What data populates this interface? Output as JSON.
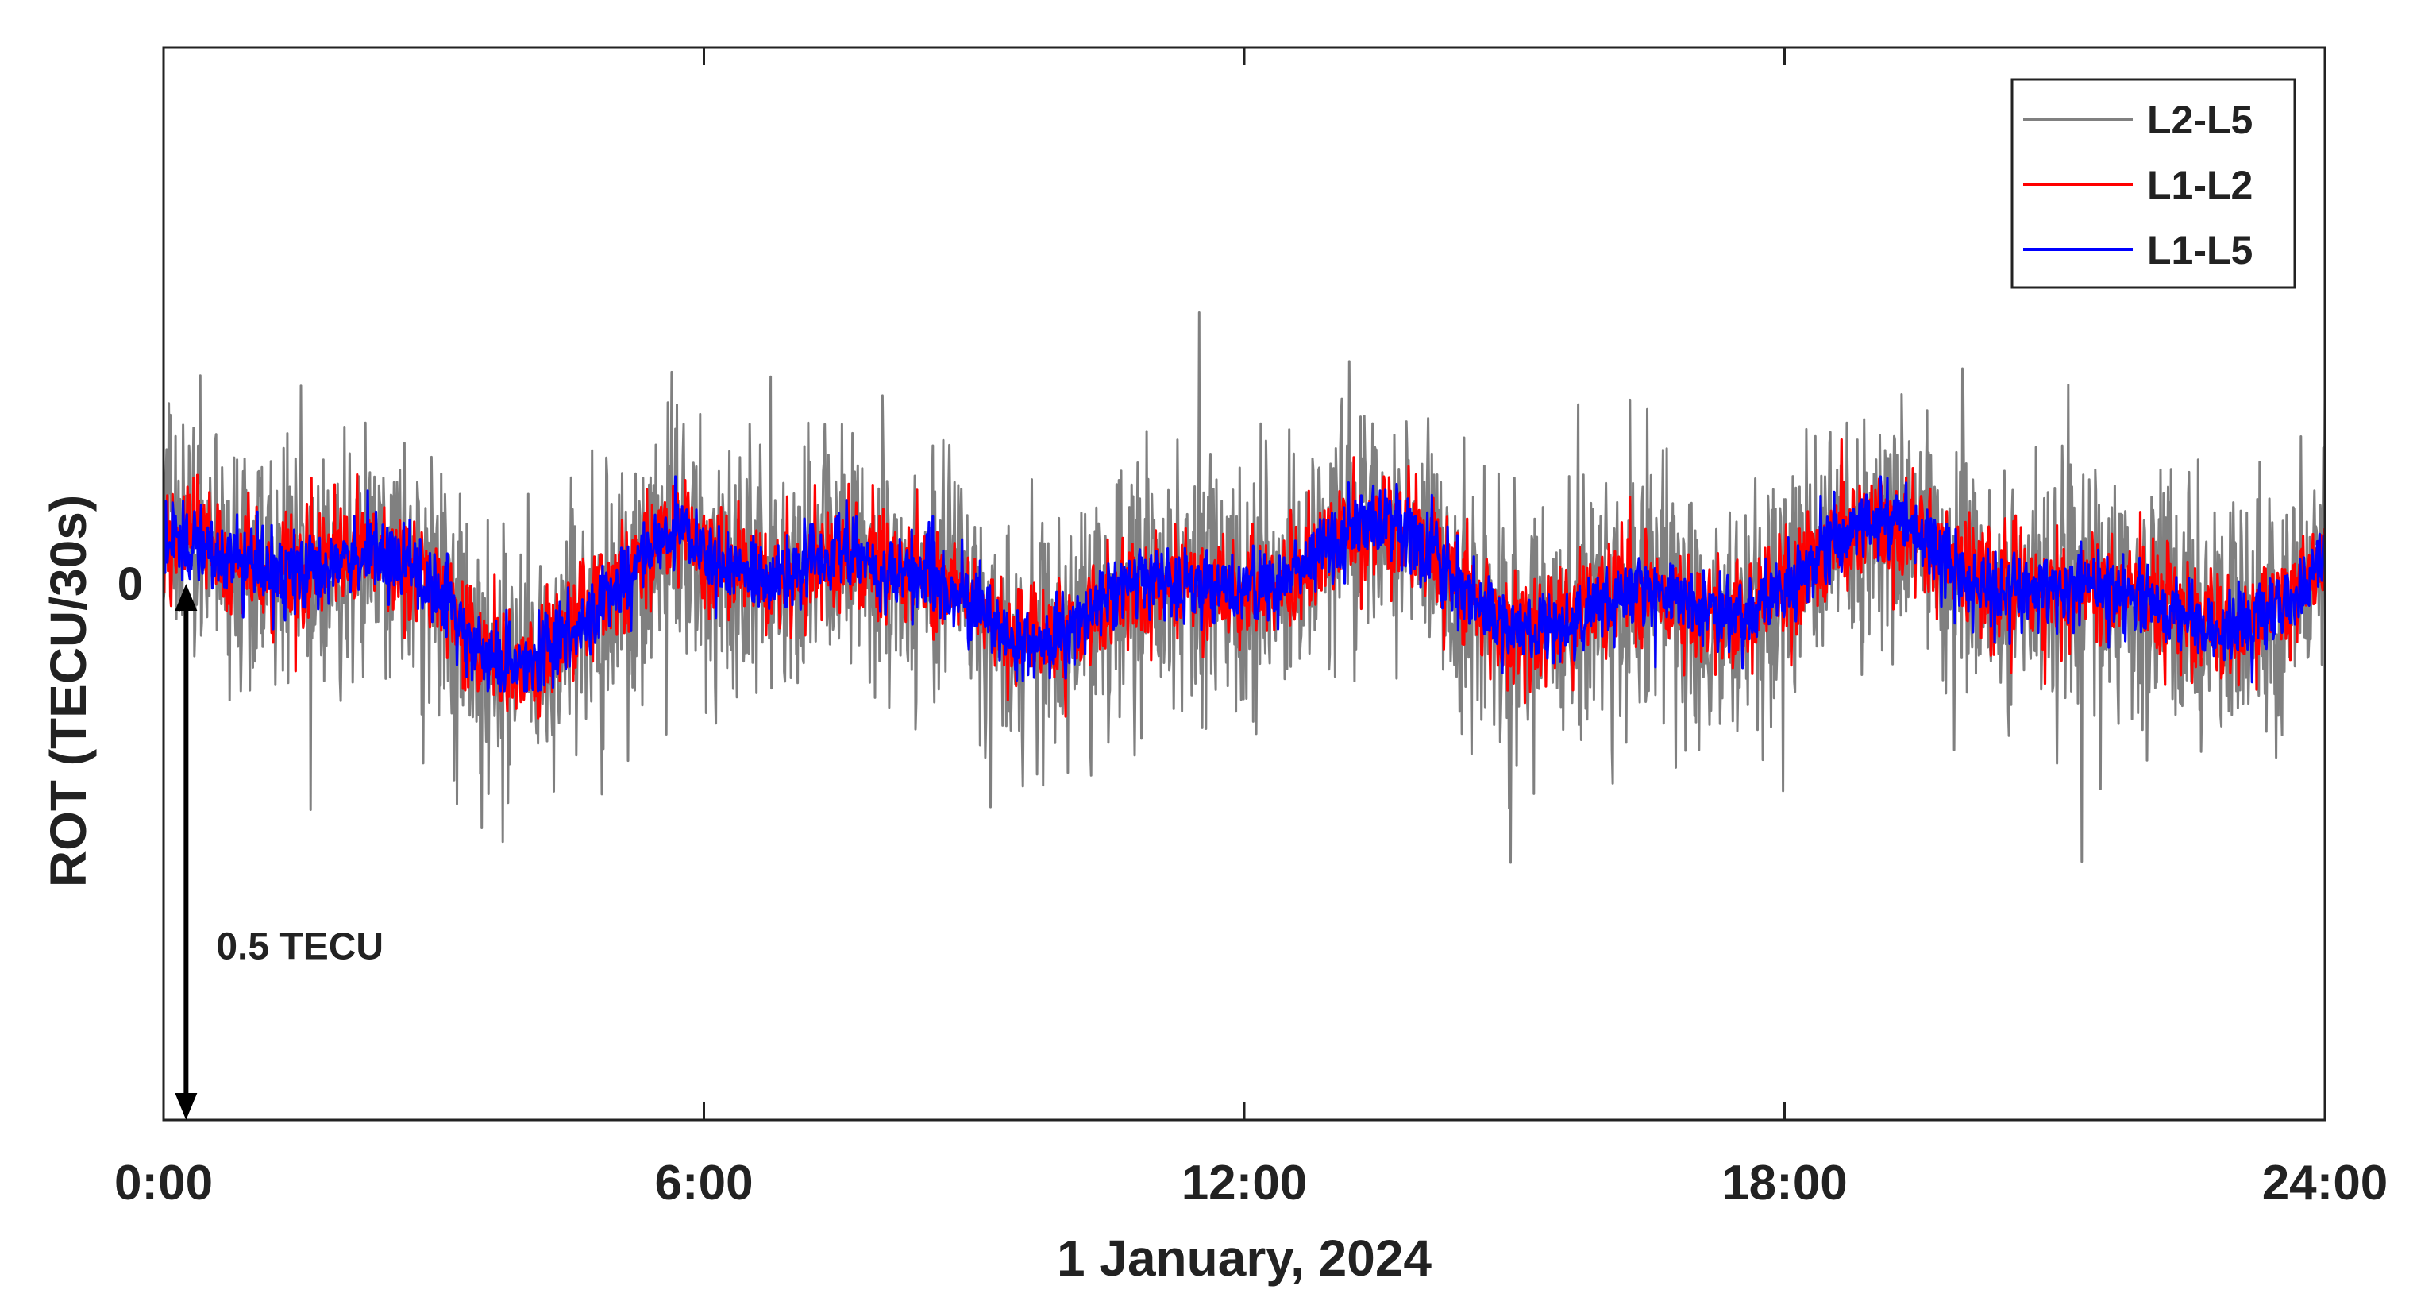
{
  "chart_data": {
    "type": "line",
    "xlabel": "1 January, 2024",
    "ylabel": "ROT (TECU/30s)",
    "x_range_hours": [
      0,
      24
    ],
    "xticks": [
      {
        "value": 0,
        "label": "0:00"
      },
      {
        "value": 6,
        "label": "6:00"
      },
      {
        "value": 12,
        "label": "12:00"
      },
      {
        "value": 18,
        "label": "18:00"
      },
      {
        "value": 24,
        "label": "24:00"
      }
    ],
    "yticks": [
      {
        "value": 0,
        "label": "0"
      }
    ],
    "ylim_tecu": [
      -0.5,
      0.5
    ],
    "grid": false,
    "legend_position": "top-right",
    "sampling_interval_s": 30,
    "series": [
      {
        "name": "L2-L5",
        "color": "#808080",
        "noise_amplitude_tecu": 0.1,
        "extreme_amplitude_tecu": 0.26
      },
      {
        "name": "L1-L2",
        "color": "#ff0000",
        "noise_amplitude_tecu": 0.045,
        "extreme_amplitude_tecu": 0.15
      },
      {
        "name": "L1-L5",
        "color": "#0000ff",
        "noise_amplitude_tecu": 0.03,
        "extreme_amplitude_tecu": 0.1
      }
    ],
    "annotation": {
      "label": "0.5 TECU",
      "value_tecu": 0.5,
      "at_hour": 0.25
    }
  }
}
